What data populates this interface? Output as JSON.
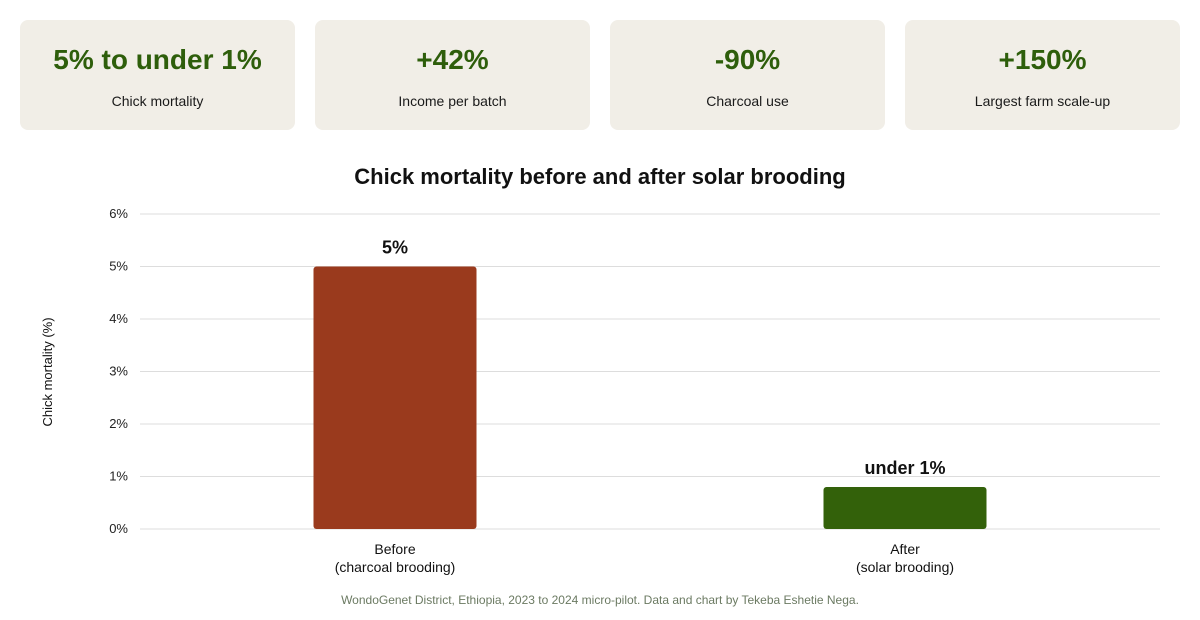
{
  "kpis": [
    {
      "value": "5% to under 1%",
      "label": "Chick mortality"
    },
    {
      "value": "+42%",
      "label": "Income per batch"
    },
    {
      "value": "-90%",
      "label": "Charcoal use"
    },
    {
      "value": "+150%",
      "label": "Largest farm scale-up"
    }
  ],
  "colors": {
    "kpi_value": "#2e5e0b",
    "card_bg": "#f1eee7",
    "before_bar": "#9a3a1d",
    "after_bar": "#33610a",
    "grid": "#dddddd",
    "footnote": "#6b7a62"
  },
  "chart_data": {
    "type": "bar",
    "title": "Chick mortality before and after solar brooding",
    "xlabel": "",
    "ylabel": "Chick mortality (%)",
    "ylim": [
      0,
      6
    ],
    "yticks": [
      0,
      1,
      2,
      3,
      4,
      5,
      6
    ],
    "ytick_labels": [
      "0%",
      "1%",
      "2%",
      "3%",
      "4%",
      "5%",
      "6%"
    ],
    "grid": true,
    "categories": [
      {
        "line1": "Before",
        "line2": "(charcoal brooding)"
      },
      {
        "line1": "After",
        "line2": "(solar brooding)"
      }
    ],
    "values": [
      5,
      0.8
    ],
    "data_labels": [
      "5%",
      "under 1%"
    ],
    "bar_colors": [
      "#9a3a1d",
      "#33610a"
    ]
  },
  "footnote": "WondoGenet District, Ethiopia, 2023 to 2024 micro-pilot. Data and chart by Tekeba Eshetie Nega."
}
